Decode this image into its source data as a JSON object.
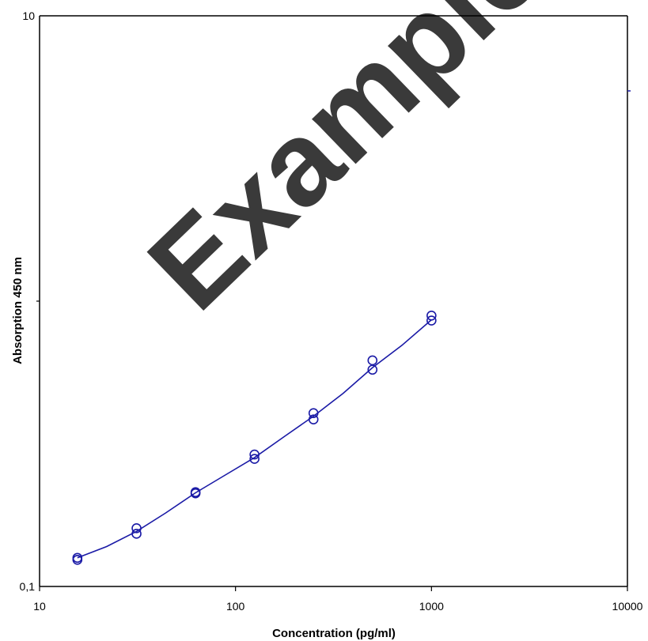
{
  "chart_data": {
    "type": "scatter",
    "xlabel": "Concentration (pg/ml)",
    "ylabel": "Absorption 450 nm",
    "xscale": "log",
    "yscale": "log",
    "xlim": [
      10,
      10000
    ],
    "ylim": [
      0.1,
      10
    ],
    "x_ticks": [
      {
        "value": 10,
        "label": "10"
      },
      {
        "value": 100,
        "label": "100"
      },
      {
        "value": 1000,
        "label": "1000"
      },
      {
        "value": 10000,
        "label": "10000"
      }
    ],
    "y_ticks": [
      {
        "value": 0.1,
        "label": "0,1"
      },
      {
        "value": 10,
        "label": "10"
      }
    ],
    "grid": false,
    "watermark": "Example",
    "series": [
      {
        "points": [
          {
            "x": 15.6,
            "y": 0.124
          },
          {
            "x": 15.6,
            "y": 0.126
          },
          {
            "x": 31.25,
            "y": 0.153
          },
          {
            "x": 31.25,
            "y": 0.16
          },
          {
            "x": 62.5,
            "y": 0.212
          },
          {
            "x": 62.5,
            "y": 0.214
          },
          {
            "x": 125,
            "y": 0.28
          },
          {
            "x": 125,
            "y": 0.29
          },
          {
            "x": 250,
            "y": 0.385
          },
          {
            "x": 250,
            "y": 0.405
          },
          {
            "x": 500,
            "y": 0.575
          },
          {
            "x": 500,
            "y": 0.62
          },
          {
            "x": 1000,
            "y": 0.855
          },
          {
            "x": 1000,
            "y": 0.89
          }
        ],
        "fit_curve": [
          {
            "x": 15.6,
            "y": 0.126
          },
          {
            "x": 22,
            "y": 0.138
          },
          {
            "x": 31.25,
            "y": 0.156
          },
          {
            "x": 44,
            "y": 0.181
          },
          {
            "x": 62.5,
            "y": 0.213
          },
          {
            "x": 88,
            "y": 0.245
          },
          {
            "x": 125,
            "y": 0.283
          },
          {
            "x": 177,
            "y": 0.335
          },
          {
            "x": 250,
            "y": 0.395
          },
          {
            "x": 354,
            "y": 0.475
          },
          {
            "x": 500,
            "y": 0.585
          },
          {
            "x": 707,
            "y": 0.7
          },
          {
            "x": 1000,
            "y": 0.86
          }
        ],
        "color": "#1a1aa6"
      }
    ]
  }
}
